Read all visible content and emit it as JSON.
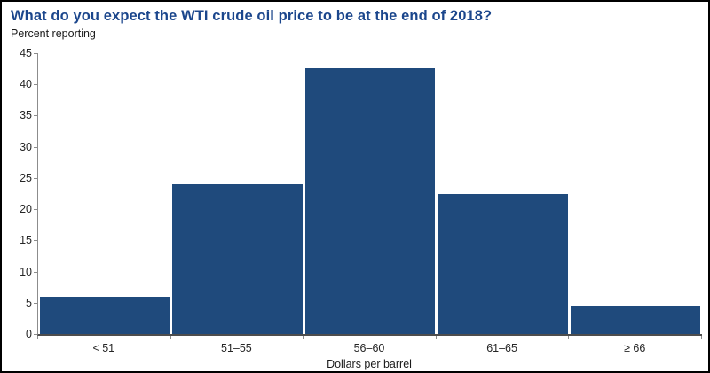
{
  "page": {
    "title": "What do you expect the WTI crude oil price to be at the end of 2018?",
    "y_unit_label": "Percent reporting",
    "x_axis_title": "Dollars per barrel"
  },
  "colors": {
    "bar_fill": "#1F4A7C",
    "title_text": "#1B468C",
    "axis_line": "#8C8C8C",
    "baseline": "#4D4D4D",
    "tick_text": "#262626",
    "page_border": "#000000"
  },
  "chart_data": {
    "type": "bar",
    "title": "What do you expect the WTI crude oil price to be at the end of 2018?",
    "ylabel": "Percent reporting",
    "xlabel": "Dollars per barrel",
    "categories": [
      "< 51",
      "51–55",
      "56–60",
      "61–65",
      "≥ 66"
    ],
    "values": [
      6,
      24,
      42.6,
      22.4,
      4.6
    ],
    "ylim": [
      0,
      45
    ],
    "yticks": [
      0,
      5,
      10,
      15,
      20,
      25,
      30,
      35,
      40,
      45
    ],
    "grid": false,
    "legend": false,
    "bar_gaps_white": true
  }
}
